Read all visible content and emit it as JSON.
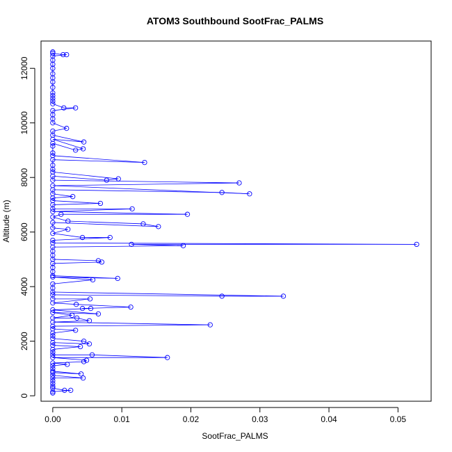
{
  "chart_data": {
    "type": "line",
    "title": "ATOM3 Southbound SootFrac_PALMS",
    "xlabel": "SootFrac_PALMS",
    "ylabel": "Altitude (m)",
    "xlim": [
      -0.0017,
      0.0548
    ],
    "ylim": [
      -200,
      13000
    ],
    "xticks": [
      0.0,
      0.01,
      0.02,
      0.03,
      0.04,
      0.05
    ],
    "xtick_labels": [
      "0.00",
      "0.01",
      "0.02",
      "0.03",
      "0.04",
      "0.05"
    ],
    "yticks": [
      0,
      2000,
      4000,
      6000,
      8000,
      10000,
      12000
    ],
    "ytick_labels": [
      "0",
      "2000",
      "4000",
      "6000",
      "8000",
      "10000",
      "12000"
    ],
    "grid": false,
    "marker": "open-circle",
    "series": [
      {
        "color": "#0000ff",
        "points": [
          [
            0.0,
            12600
          ],
          [
            0.0,
            12550
          ],
          [
            0.0015,
            12500
          ],
          [
            0.002,
            12500
          ],
          [
            0.0,
            12450
          ],
          [
            0.0,
            12300
          ],
          [
            0.0,
            12150
          ],
          [
            0.0,
            12000
          ],
          [
            0.0,
            11800
          ],
          [
            0.0,
            11650
          ],
          [
            0.0,
            11500
          ],
          [
            0.0,
            11300
          ],
          [
            0.0,
            11100
          ],
          [
            0.0,
            11000
          ],
          [
            0.0,
            10900
          ],
          [
            0.0,
            10800
          ],
          [
            0.0,
            10700
          ],
          [
            0.0016,
            10550
          ],
          [
            0.0033,
            10550
          ],
          [
            0.0,
            10450
          ],
          [
            0.0,
            10300
          ],
          [
            0.0,
            10150
          ],
          [
            0.0,
            10000
          ],
          [
            0.002,
            9800
          ],
          [
            0.0,
            9700
          ],
          [
            0.0,
            9550
          ],
          [
            0.0045,
            9300
          ],
          [
            0.0,
            9400
          ],
          [
            0.0044,
            9050
          ],
          [
            0.0033,
            9000
          ],
          [
            0.0,
            9250
          ],
          [
            0.0,
            9150
          ],
          [
            0.0,
            8900
          ],
          [
            0.0,
            8800
          ],
          [
            0.0133,
            8550
          ],
          [
            0.0,
            8650
          ],
          [
            0.0,
            8450
          ],
          [
            0.0,
            8300
          ],
          [
            0.0,
            8200
          ],
          [
            0.0095,
            7950
          ],
          [
            0.0078,
            7900
          ],
          [
            0.0,
            8050
          ],
          [
            0.0,
            7900
          ],
          [
            0.027,
            7800
          ],
          [
            0.0,
            7700
          ],
          [
            0.0285,
            7400
          ],
          [
            0.0245,
            7450
          ],
          [
            0.0,
            7550
          ],
          [
            0.0,
            7400
          ],
          [
            0.0029,
            7300
          ],
          [
            0.0,
            7250
          ],
          [
            0.0,
            7150
          ],
          [
            0.0069,
            7050
          ],
          [
            0.0,
            7000
          ],
          [
            0.0,
            6850
          ],
          [
            0.0115,
            6850
          ],
          [
            0.0,
            6750
          ],
          [
            0.0195,
            6650
          ],
          [
            0.0012,
            6650
          ],
          [
            0.0,
            6550
          ],
          [
            0.0022,
            6400
          ],
          [
            0.0131,
            6300
          ],
          [
            0.0153,
            6200
          ],
          [
            0.0,
            6350
          ],
          [
            0.0,
            6150
          ],
          [
            0.0022,
            6100
          ],
          [
            0.0,
            5950
          ],
          [
            0.0043,
            5800
          ],
          [
            0.0083,
            5800
          ],
          [
            0.0,
            5700
          ],
          [
            0.0,
            5600
          ],
          [
            0.0527,
            5550
          ],
          [
            0.0114,
            5550
          ],
          [
            0.0189,
            5500
          ],
          [
            0.0,
            5450
          ],
          [
            0.0,
            5300
          ],
          [
            0.0,
            5150
          ],
          [
            0.0,
            5000
          ],
          [
            0.0066,
            4950
          ],
          [
            0.0071,
            4900
          ],
          [
            0.0,
            4850
          ],
          [
            0.0,
            4700
          ],
          [
            0.0,
            4550
          ],
          [
            0.0,
            4400
          ],
          [
            0.0094,
            4300
          ],
          [
            0.0,
            4350
          ],
          [
            0.0058,
            4250
          ],
          [
            0.0,
            4100
          ],
          [
            0.0,
            3950
          ],
          [
            0.0,
            3800
          ],
          [
            0.0334,
            3650
          ],
          [
            0.0245,
            3650
          ],
          [
            0.0,
            3700
          ],
          [
            0.0,
            3550
          ],
          [
            0.0054,
            3550
          ],
          [
            0.0,
            3400
          ],
          [
            0.0034,
            3350
          ],
          [
            0.0113,
            3250
          ],
          [
            0.0043,
            3200
          ],
          [
            0.0055,
            3200
          ],
          [
            0.0,
            3150
          ],
          [
            0.0066,
            3000
          ],
          [
            0.0,
            3050
          ],
          [
            0.0028,
            2950
          ],
          [
            0.0,
            2850
          ],
          [
            0.0035,
            2850
          ],
          [
            0.0053,
            2750
          ],
          [
            0.0,
            2700
          ],
          [
            0.0228,
            2600
          ],
          [
            0.0,
            2550
          ],
          [
            0.0,
            2450
          ],
          [
            0.0033,
            2400
          ],
          [
            0.0,
            2300
          ],
          [
            0.0,
            2200
          ],
          [
            0.0,
            2100
          ],
          [
            0.0045,
            2000
          ],
          [
            0.0053,
            1900
          ],
          [
            0.0,
            1950
          ],
          [
            0.0,
            1850
          ],
          [
            0.004,
            1800
          ],
          [
            0.0,
            1700
          ],
          [
            0.0,
            1600
          ],
          [
            0.0,
            1500
          ],
          [
            0.0057,
            1500
          ],
          [
            0.0166,
            1400
          ],
          [
            0.0,
            1400
          ],
          [
            0.0049,
            1300
          ],
          [
            0.0045,
            1250
          ],
          [
            0.0,
            1200
          ],
          [
            0.0021,
            1150
          ],
          [
            0.0,
            1100
          ],
          [
            0.0,
            1000
          ],
          [
            0.0,
            900
          ],
          [
            0.0041,
            800
          ],
          [
            0.0,
            850
          ],
          [
            0.0,
            750
          ],
          [
            0.0044,
            650
          ],
          [
            0.0,
            650
          ],
          [
            0.0,
            550
          ],
          [
            0.0,
            450
          ],
          [
            0.0,
            350
          ],
          [
            0.0,
            280
          ],
          [
            0.0017,
            200
          ],
          [
            0.0026,
            200
          ],
          [
            0.0,
            150
          ],
          [
            0.0,
            100
          ]
        ]
      }
    ]
  }
}
